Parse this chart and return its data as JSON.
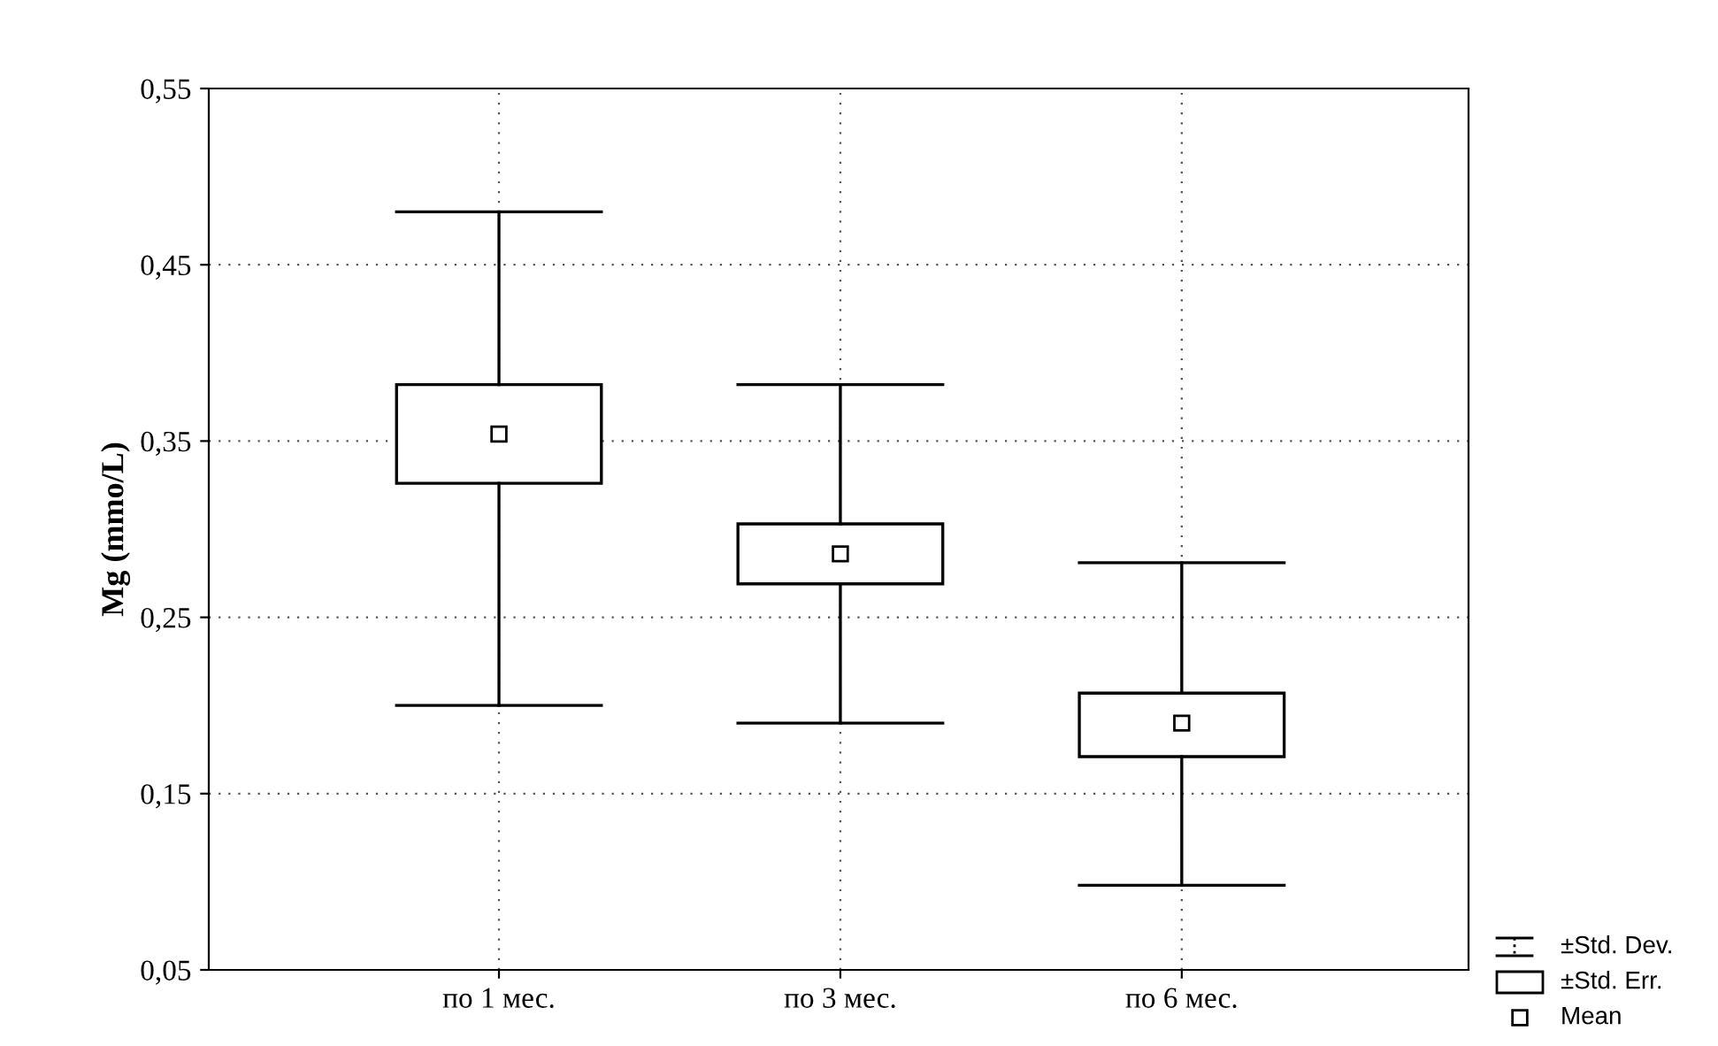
{
  "chart_data": {
    "type": "box",
    "ylabel": "Mg (mmo/L)",
    "categories": [
      "по 1 мес.",
      "по 3 мес.",
      "по 6 мес."
    ],
    "boxes": [
      {
        "low": 0.2,
        "q1": 0.326,
        "q3": 0.382,
        "high": 0.48,
        "mean": 0.354
      },
      {
        "low": 0.19,
        "q1": 0.269,
        "q3": 0.303,
        "high": 0.382,
        "mean": 0.286
      },
      {
        "low": 0.098,
        "q1": 0.171,
        "q3": 0.207,
        "high": 0.281,
        "mean": 0.19
      }
    ],
    "ylim": [
      0.05,
      0.55
    ],
    "yticks": [
      {
        "value": 0.05,
        "label": "0,05"
      },
      {
        "value": 0.15,
        "label": "0,15"
      },
      {
        "value": 0.25,
        "label": "0,25"
      },
      {
        "value": 0.35,
        "label": "0,35"
      },
      {
        "value": 0.45,
        "label": "0,45"
      },
      {
        "value": 0.55,
        "label": "0,55"
      }
    ],
    "grid": true,
    "marker": "square",
    "annotations": [
      "±Std. Dev.",
      "±Std. Err.",
      "Mean"
    ]
  }
}
